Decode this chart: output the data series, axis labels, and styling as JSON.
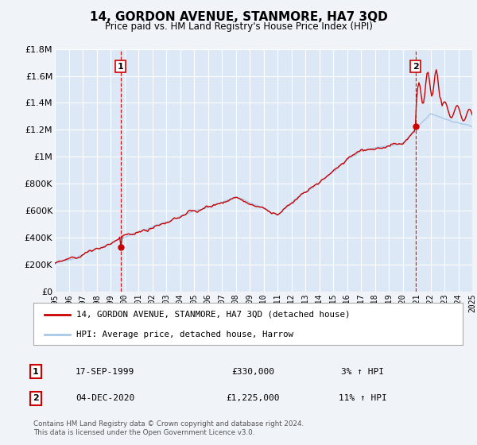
{
  "title": "14, GORDON AVENUE, STANMORE, HA7 3QD",
  "subtitle": "Price paid vs. HM Land Registry's House Price Index (HPI)",
  "background_color": "#f0f4f8",
  "plot_bg_color": "#dce8f5",
  "grid_color": "#ffffff",
  "year_start": 1995,
  "year_end": 2025,
  "ylim": [
    0,
    1800000
  ],
  "yticks": [
    0,
    200000,
    400000,
    600000,
    800000,
    1000000,
    1200000,
    1400000,
    1600000,
    1800000
  ],
  "ytick_labels": [
    "£0",
    "£200K",
    "£400K",
    "£600K",
    "£800K",
    "£1M",
    "£1.2M",
    "£1.4M",
    "£1.6M",
    "£1.8M"
  ],
  "hpi_color": "#a8c8e8",
  "price_color": "#cc0000",
  "marker_color": "#cc0000",
  "dashed_line_color": "#cc0000",
  "transaction1_x": 1999.72,
  "transaction1_price": 330000,
  "transaction2_x": 2020.92,
  "transaction2_price": 1225000,
  "legend1": "14, GORDON AVENUE, STANMORE, HA7 3QD (detached house)",
  "legend2": "HPI: Average price, detached house, Harrow",
  "table_row1": [
    "1",
    "17-SEP-1999",
    "£330,000",
    "3% ↑ HPI"
  ],
  "table_row2": [
    "2",
    "04-DEC-2020",
    "£1,225,000",
    "11% ↑ HPI"
  ],
  "footer": "Contains HM Land Registry data © Crown copyright and database right 2024.\nThis data is licensed under the Open Government Licence v3.0.",
  "xticks": [
    1995,
    1996,
    1997,
    1998,
    1999,
    2000,
    2001,
    2002,
    2003,
    2004,
    2005,
    2006,
    2007,
    2008,
    2009,
    2010,
    2011,
    2012,
    2013,
    2014,
    2015,
    2016,
    2017,
    2018,
    2019,
    2020,
    2021,
    2022,
    2023,
    2024,
    2025
  ]
}
